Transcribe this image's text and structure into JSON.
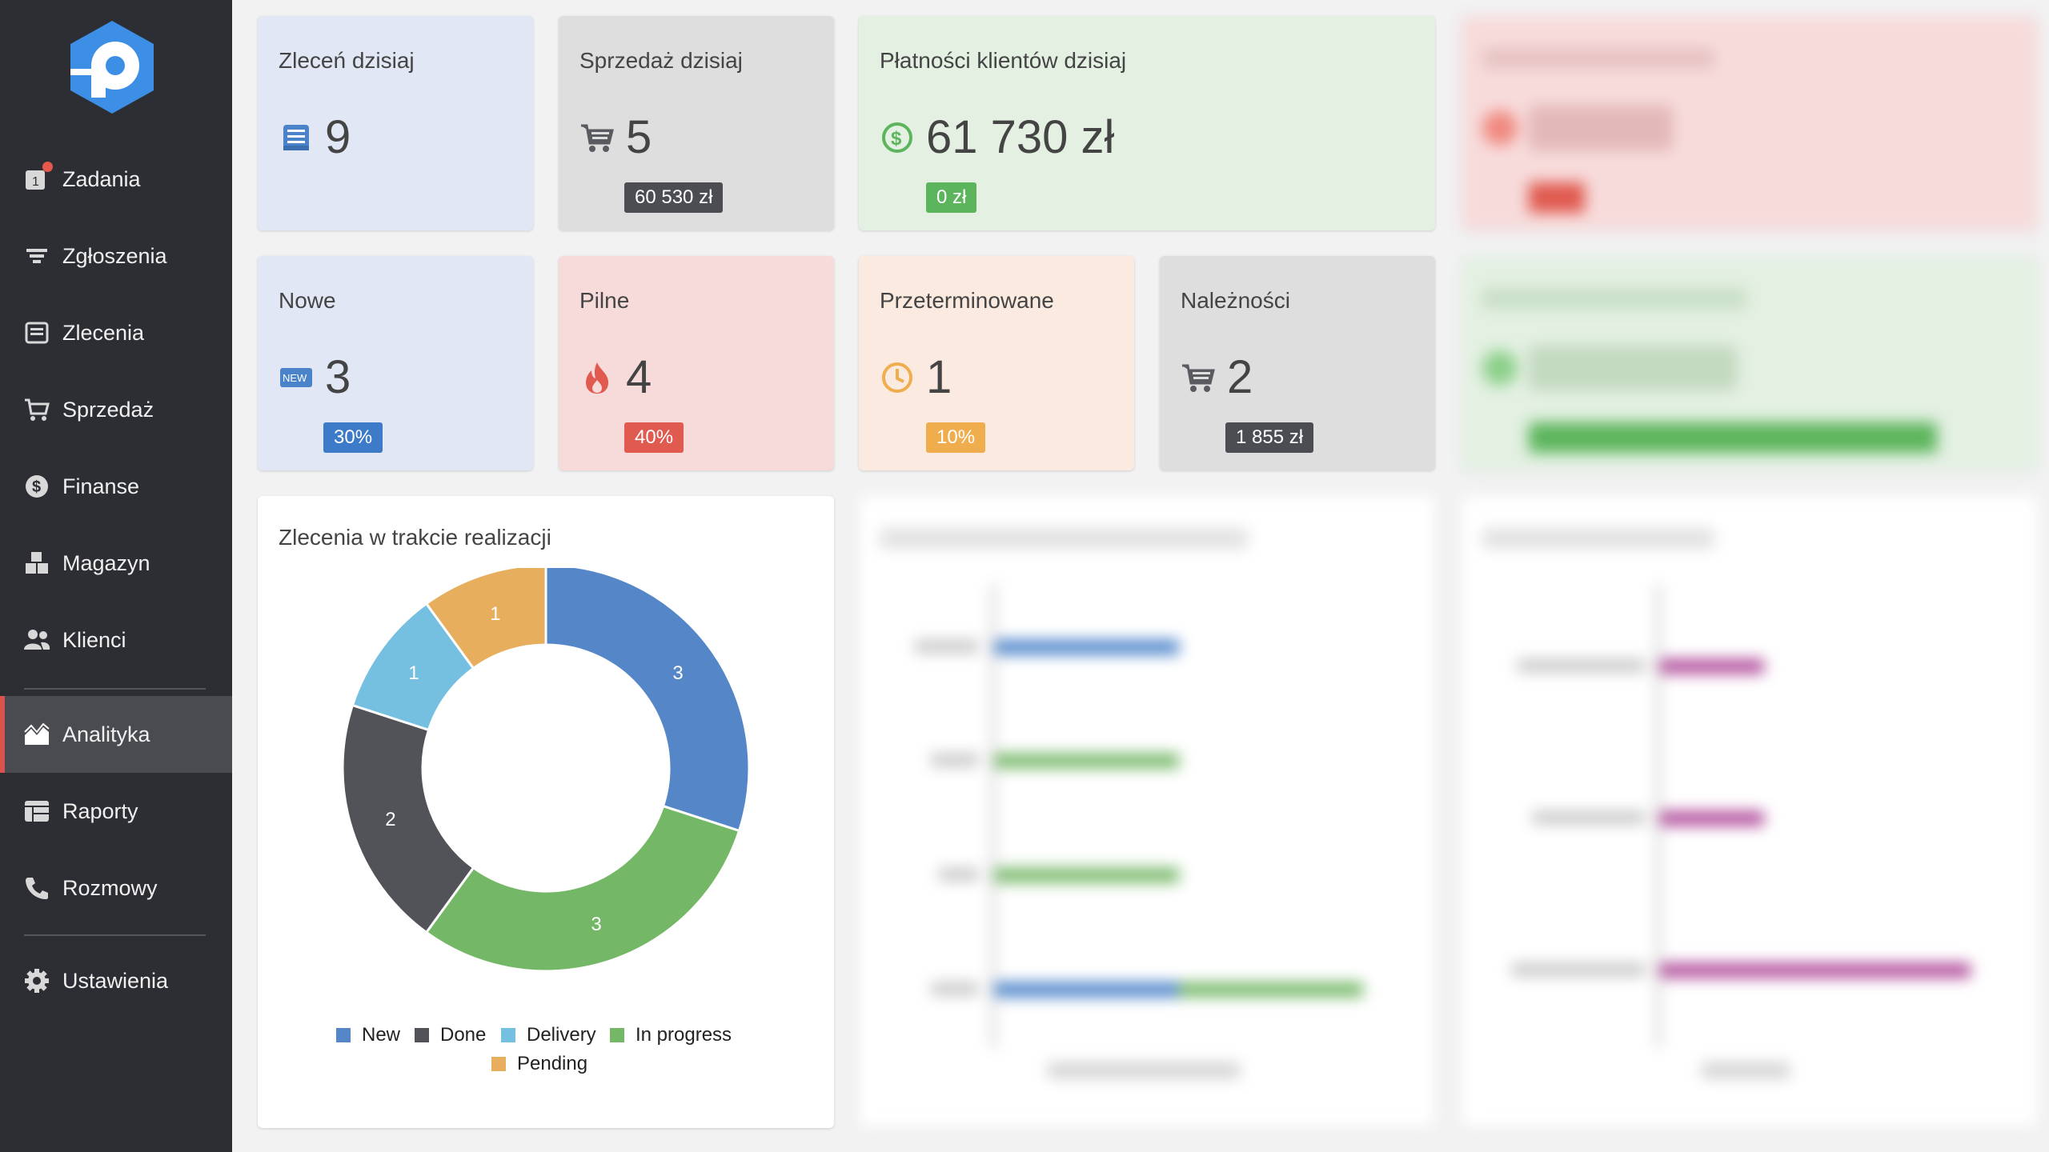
{
  "sidebar": {
    "items": [
      {
        "label": "Zadania",
        "icon": "tasks-icon"
      },
      {
        "label": "Zgłoszenia",
        "icon": "filter-icon"
      },
      {
        "label": "Zlecenia",
        "icon": "orders-icon"
      },
      {
        "label": "Sprzedaż",
        "icon": "cart-icon"
      },
      {
        "label": "Finanse",
        "icon": "dollar-icon"
      },
      {
        "label": "Magazyn",
        "icon": "boxes-icon"
      },
      {
        "label": "Klienci",
        "icon": "users-icon"
      },
      {
        "label": "Analityka",
        "icon": "chart-area-icon",
        "active": true
      },
      {
        "label": "Raporty",
        "icon": "table-icon"
      },
      {
        "label": "Rozmowy",
        "icon": "phone-icon"
      },
      {
        "label": "Ustawienia",
        "icon": "gear-icon"
      }
    ],
    "tasks_badge_count": "1"
  },
  "cards": {
    "orders_today": {
      "title": "Zleceń dzisiaj",
      "value": "9",
      "icon": "orders-icon"
    },
    "sales_today": {
      "title": "Sprzedaż dzisiaj",
      "value": "5",
      "pill": "60 530 zł",
      "icon": "cart-icon"
    },
    "payments_today": {
      "title": "Płatności klientów dzisiaj",
      "value": "61 730 zł",
      "pill": "0 zł",
      "icon": "dollar-icon"
    },
    "new": {
      "title": "Nowe",
      "value": "3",
      "pill": "30%",
      "icon": "new-icon",
      "icon_text": "NEW"
    },
    "urgent": {
      "title": "Pilne",
      "value": "4",
      "pill": "40%",
      "icon": "fire-icon"
    },
    "overdue": {
      "title": "Przeterminowane",
      "value": "1",
      "pill": "10%",
      "icon": "clock-icon"
    },
    "receivables": {
      "title": "Należności",
      "value": "2",
      "pill": "1 855 zł",
      "icon": "cart-icon"
    }
  },
  "donut_panel": {
    "title": "Zlecenia w trakcie realizacji"
  },
  "chart_data": {
    "type": "pie",
    "donut": true,
    "title": "Zlecenia w trakcie realizacji",
    "categories": [
      "New",
      "In progress",
      "Done",
      "Delivery",
      "Pending"
    ],
    "values": [
      3,
      3,
      2,
      1,
      1
    ],
    "colors": [
      "#5587c8",
      "#74b766",
      "#525358",
      "#75bfe0",
      "#e7ae5e"
    ],
    "legend": [
      "New",
      "Done",
      "Delivery",
      "In progress",
      "Pending"
    ],
    "legend_placement": "bottom"
  },
  "colors": {
    "sidebar_bg": "#2d2e33",
    "active_accent": "#d9534f",
    "pill_dark": "#4c4d52",
    "pill_green": "#5cb55c",
    "pill_blue": "#3d7ac8",
    "pill_red": "#e05a4f",
    "pill_orange": "#f0ad4e"
  }
}
